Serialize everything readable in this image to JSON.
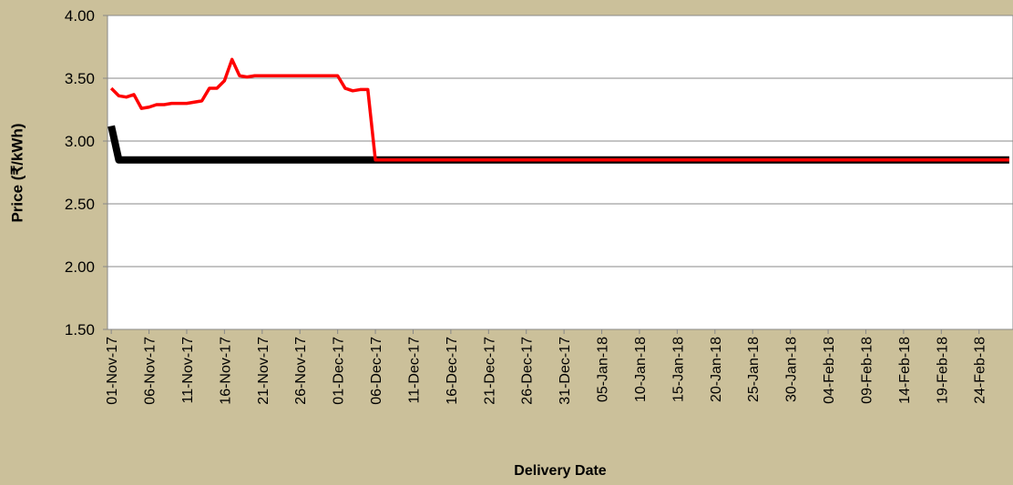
{
  "chart_data": {
    "type": "line",
    "xlabel": "Delivery Date",
    "ylabel": "Price (₹/kWh)",
    "ylim": [
      1.5,
      4.0
    ],
    "yticks": [
      {
        "value": 1.5,
        "label": "1.50"
      },
      {
        "value": 2.0,
        "label": "2.00"
      },
      {
        "value": 2.5,
        "label": "2.50"
      },
      {
        "value": 3.0,
        "label": "3.00"
      },
      {
        "value": 3.5,
        "label": "3.50"
      },
      {
        "value": 4.0,
        "label": "4.00"
      }
    ],
    "grid": true,
    "categories": [
      "01-Nov-17",
      null,
      null,
      null,
      null,
      "06-Nov-17",
      null,
      null,
      null,
      null,
      "11-Nov-17",
      null,
      null,
      null,
      null,
      "16-Nov-17",
      null,
      null,
      null,
      null,
      "21-Nov-17",
      null,
      null,
      null,
      null,
      "26-Nov-17",
      null,
      null,
      null,
      null,
      "01-Dec-17",
      null,
      null,
      null,
      null,
      "06-Dec-17",
      null,
      null,
      null,
      null,
      "11-Dec-17",
      null,
      null,
      null,
      null,
      "16-Dec-17",
      null,
      null,
      null,
      null,
      "21-Dec-17",
      null,
      null,
      null,
      null,
      "26-Dec-17",
      null,
      null,
      null,
      null,
      "31-Dec-17",
      null,
      null,
      null,
      null,
      "05-Jan-18",
      null,
      null,
      null,
      null,
      "10-Jan-18",
      null,
      null,
      null,
      null,
      "15-Jan-18",
      null,
      null,
      null,
      null,
      "20-Jan-18",
      null,
      null,
      null,
      null,
      "25-Jan-18",
      null,
      null,
      null,
      null,
      "30-Jan-18",
      null,
      null,
      null,
      null,
      "04-Feb-18",
      null,
      null,
      null,
      null,
      "09-Feb-18",
      null,
      null,
      null,
      null,
      "14-Feb-18",
      null,
      null,
      null,
      null,
      "19-Feb-18",
      null,
      null,
      null,
      null,
      "24-Feb-18",
      null,
      null,
      null,
      null
    ],
    "series": [
      {
        "color": "#000000",
        "width": 8,
        "values": [
          3.12,
          2.85,
          2.85,
          2.85,
          2.85,
          2.85,
          2.85,
          2.85,
          2.85,
          2.85,
          2.85,
          2.85,
          2.85,
          2.85,
          2.85,
          2.85,
          2.85,
          2.85,
          2.85,
          2.85,
          2.85,
          2.85,
          2.85,
          2.85,
          2.85,
          2.85,
          2.85,
          2.85,
          2.85,
          2.85,
          2.85,
          2.85,
          2.85,
          2.85,
          2.85,
          2.85,
          2.85,
          2.85,
          2.85,
          2.85,
          2.85,
          2.85,
          2.85,
          2.85,
          2.85,
          2.85,
          2.85,
          2.85,
          2.85,
          2.85,
          2.85,
          2.85,
          2.85,
          2.85,
          2.85,
          2.85,
          2.85,
          2.85,
          2.85,
          2.85,
          2.85,
          2.85,
          2.85,
          2.85,
          2.85,
          2.85,
          2.85,
          2.85,
          2.85,
          2.85,
          2.85,
          2.85,
          2.85,
          2.85,
          2.85,
          2.85,
          2.85,
          2.85,
          2.85,
          2.85,
          2.85,
          2.85,
          2.85,
          2.85,
          2.85,
          2.85,
          2.85,
          2.85,
          2.85,
          2.85,
          2.85,
          2.85,
          2.85,
          2.85,
          2.85,
          2.85,
          2.85,
          2.85,
          2.85,
          2.85,
          2.85,
          2.85,
          2.85,
          2.85,
          2.85,
          2.85,
          2.85,
          2.85,
          2.85,
          2.85,
          2.85,
          2.85,
          2.85,
          2.85,
          2.85,
          2.85,
          2.85,
          2.85,
          2.85,
          2.85
        ]
      },
      {
        "color": "#ff0000",
        "width": 3.5,
        "values": [
          3.42,
          3.36,
          3.35,
          3.37,
          3.26,
          3.27,
          3.29,
          3.29,
          3.3,
          3.3,
          3.3,
          3.31,
          3.32,
          3.42,
          3.42,
          3.48,
          3.65,
          3.52,
          3.51,
          3.52,
          3.52,
          3.52,
          3.52,
          3.52,
          3.52,
          3.52,
          3.52,
          3.52,
          3.52,
          3.52,
          3.52,
          3.42,
          3.4,
          3.41,
          3.41,
          2.85,
          2.85,
          2.85,
          2.85,
          2.85,
          2.85,
          2.85,
          2.85,
          2.85,
          2.85,
          2.85,
          2.85,
          2.85,
          2.85,
          2.85,
          2.85,
          2.85,
          2.85,
          2.85,
          2.85,
          2.85,
          2.85,
          2.85,
          2.85,
          2.85,
          2.85,
          2.85,
          2.85,
          2.85,
          2.85,
          2.85,
          2.85,
          2.85,
          2.85,
          2.85,
          2.85,
          2.85,
          2.85,
          2.85,
          2.85,
          2.85,
          2.85,
          2.85,
          2.85,
          2.85,
          2.85,
          2.85,
          2.85,
          2.85,
          2.85,
          2.85,
          2.85,
          2.85,
          2.85,
          2.85,
          2.85,
          2.85,
          2.85,
          2.85,
          2.85,
          2.85,
          2.85,
          2.85,
          2.85,
          2.85,
          2.85,
          2.85,
          2.85,
          2.85,
          2.85,
          2.85,
          2.85,
          2.85,
          2.85,
          2.85,
          2.85,
          2.85,
          2.85,
          2.85,
          2.85,
          2.85,
          2.85,
          2.85,
          2.85,
          2.85
        ]
      }
    ]
  }
}
